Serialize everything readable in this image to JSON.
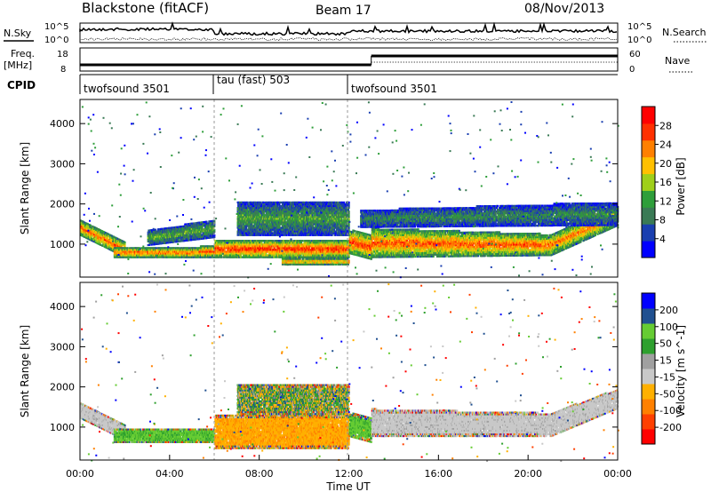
{
  "header": {
    "station": "Blackstone (fitACF)",
    "beam": "Beam 17",
    "date": "08/Nov/2013"
  },
  "top_panels": {
    "nsky_label": "N.Sky",
    "nsearch_label": "N.Search",
    "nsky_ticks": [
      "10^5",
      "10^0"
    ],
    "nsearch_ticks": [
      "10^5",
      "10^0"
    ],
    "freq_label": "Freq.",
    "freq_unit": "[MHz]",
    "freq_ticks": [
      "18",
      "8"
    ],
    "nave_label": "Nave",
    "nave_ticks": [
      "60",
      "0"
    ],
    "cpid_label": "CPID",
    "cpid_segments": [
      {
        "label": "twofsound 3501",
        "start_hour": 0,
        "end_hour": 6
      },
      {
        "label": "tau (fast) 503",
        "start_hour": 6,
        "end_hour": 12
      },
      {
        "label": "twofsound 3501",
        "start_hour": 12,
        "end_hour": 24
      }
    ]
  },
  "chart_data": [
    {
      "type": "heatmap",
      "quantity": "power",
      "ylabel": "Slant Range [km]",
      "xlim": [
        0,
        24
      ],
      "ylim": [
        180,
        4600
      ],
      "yticks": [
        "1000",
        "2000",
        "3000",
        "4000"
      ],
      "colorbar_label": "Power [dB]",
      "colorbar_ticks": [
        "28",
        "24",
        "20",
        "16",
        "12",
        "8",
        "4"
      ],
      "colorbar_range": [
        0,
        30
      ],
      "colors": [
        "#0000ff",
        "#1a3fb0",
        "#3a7a55",
        "#2e9e3a",
        "#9fcf1a",
        "#ffc000",
        "#ff8000",
        "#ff3000",
        "#ff0000"
      ],
      "bands": [
        {
          "t": [
            0.0,
            2.0
          ],
          "r0": [
            1250,
            700
          ],
          "r1": [
            1650,
            1100
          ],
          "level": 0.85
        },
        {
          "t": [
            1.5,
            6.0
          ],
          "r0": [
            700,
            700
          ],
          "r1": [
            950,
            1000
          ],
          "level": 0.9
        },
        {
          "t": [
            3.0,
            6.0
          ],
          "r0": [
            1000,
            1200
          ],
          "r1": [
            1400,
            1650
          ],
          "level": 0.45
        },
        {
          "t": [
            6.0,
            12.0
          ],
          "r0": [
            700,
            700
          ],
          "r1": [
            1150,
            1150
          ],
          "level": 0.95
        },
        {
          "t": [
            9.0,
            12.0
          ],
          "r0": [
            520,
            520
          ],
          "r1": [
            700,
            700
          ],
          "level": 0.9
        },
        {
          "t": [
            7.0,
            12.0
          ],
          "r0": [
            1250,
            1250
          ],
          "r1": [
            2100,
            2100
          ],
          "level": 0.4
        },
        {
          "t": [
            12.0,
            13.0
          ],
          "r0": [
            800,
            650
          ],
          "r1": [
            1400,
            1300
          ],
          "level": 0.9
        },
        {
          "t": [
            13.0,
            21.0
          ],
          "r0": [
            700,
            750
          ],
          "r1": [
            1450,
            1300
          ],
          "level": 0.85
        },
        {
          "t": [
            21.0,
            24.0
          ],
          "r0": [
            750,
            1500
          ],
          "r1": [
            1300,
            2000
          ],
          "level": 0.8
        },
        {
          "t": [
            12.5,
            24.0
          ],
          "r0": [
            1450,
            1500
          ],
          "r1": [
            1900,
            2100
          ],
          "level": 0.35
        }
      ]
    },
    {
      "type": "heatmap",
      "quantity": "velocity",
      "ylabel": "Slant Range [km]",
      "xlim": [
        0,
        24
      ],
      "ylim": [
        180,
        4600
      ],
      "yticks": [
        "1000",
        "2000",
        "3000",
        "4000"
      ],
      "xticks": [
        "00:00",
        "04:00",
        "08:00",
        "12:00",
        "16:00",
        "20:00",
        "00:00"
      ],
      "xlabel": "Time UT",
      "colorbar_label": "Velocity [m s^-1]",
      "colorbar_ticks": [
        "200",
        "100",
        "50",
        "15",
        "-15",
        "-50",
        "-100",
        "-200"
      ],
      "colorbar_range": [
        -250,
        250
      ],
      "colors": [
        "#ff0000",
        "#ff4000",
        "#ff8000",
        "#ffb000",
        "#c8c8c8",
        "#a0a0a0",
        "#2ea02e",
        "#66cc33",
        "#205090",
        "#0000ff"
      ],
      "bands": [
        {
          "t": [
            0.0,
            2.0
          ],
          "r0": [
            1250,
            700
          ],
          "r1": [
            1650,
            1100
          ],
          "level": "ground"
        },
        {
          "t": [
            1.5,
            6.0
          ],
          "r0": [
            650,
            650
          ],
          "r1": [
            1000,
            1000
          ],
          "level": "green"
        },
        {
          "t": [
            6.0,
            12.0
          ],
          "r0": [
            500,
            500
          ],
          "r1": [
            1350,
            1350
          ],
          "level": "orange"
        },
        {
          "t": [
            7.0,
            12.0
          ],
          "r0": [
            1350,
            1350
          ],
          "r1": [
            2100,
            2100
          ],
          "level": "mixed"
        },
        {
          "t": [
            12.0,
            13.0
          ],
          "r0": [
            800,
            650
          ],
          "r1": [
            1400,
            1300
          ],
          "level": "green"
        },
        {
          "t": [
            13.0,
            21.0
          ],
          "r0": [
            800,
            800
          ],
          "r1": [
            1500,
            1400
          ],
          "level": "ground"
        },
        {
          "t": [
            21.0,
            24.0
          ],
          "r0": [
            800,
            1500
          ],
          "r1": [
            1400,
            2000
          ],
          "level": "ground"
        }
      ]
    }
  ]
}
